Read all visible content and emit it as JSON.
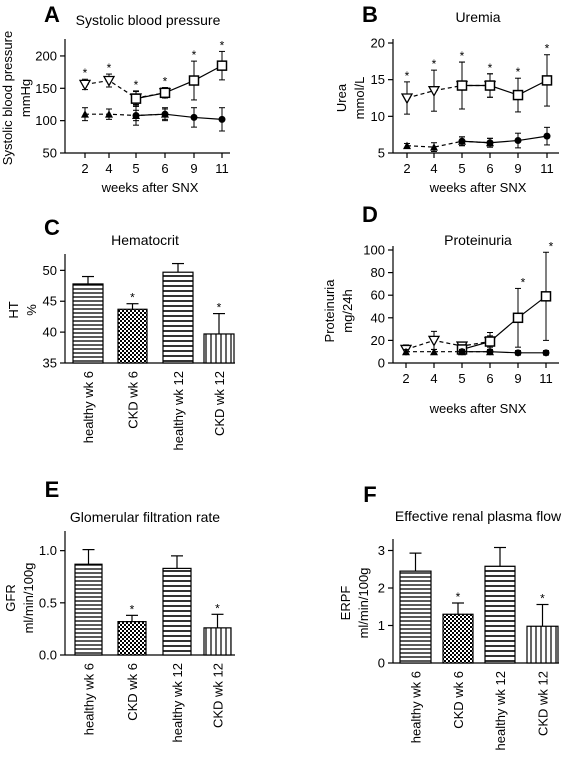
{
  "chart_data": [
    {
      "panel": "A",
      "type": "line",
      "title": "Systolic blood pressure",
      "ylabel": [
        "Systolic blood pressure",
        "mmHg"
      ],
      "xlabel": "weeks after SNX",
      "categories": [
        "2",
        "4",
        "5",
        "6",
        "9",
        "11"
      ],
      "ylim": [
        50,
        220
      ],
      "yticks": [
        "50",
        "100",
        "150",
        "200"
      ],
      "series": [
        {
          "marker": "triangle-down-open",
          "line": "dashed",
          "values": [
            156,
            162,
            135,
            143,
            null,
            null
          ],
          "errors": [
            8,
            10,
            10,
            8,
            null,
            null
          ]
        },
        {
          "marker": "square-open",
          "line": "solid",
          "values": [
            null,
            null,
            134,
            143,
            162,
            185
          ],
          "errors": [
            null,
            null,
            12,
            8,
            30,
            22
          ]
        },
        {
          "marker": "triangle-up-filled",
          "line": "dashed",
          "values": [
            110,
            110,
            108,
            110,
            null,
            null
          ],
          "errors": [
            10,
            8,
            8,
            8,
            null,
            null
          ]
        },
        {
          "marker": "circle-filled",
          "line": "solid",
          "values": [
            null,
            null,
            108,
            110,
            105,
            102
          ],
          "errors": [
            null,
            null,
            15,
            10,
            15,
            18
          ]
        }
      ],
      "significance": [
        "*",
        "*",
        "*",
        "*",
        "*",
        "*"
      ]
    },
    {
      "panel": "B",
      "type": "line",
      "title": "Uremia",
      "ylabel": [
        "Urea",
        "mmol/L"
      ],
      "xlabel": "weeks after SNX",
      "categories": [
        "2",
        "4",
        "5",
        "6",
        "9",
        "11"
      ],
      "ylim": [
        5,
        20
      ],
      "yticks": [
        "5",
        "10",
        "15",
        "20"
      ],
      "series": [
        {
          "marker": "triangle-down-open",
          "line": "dashed",
          "values": [
            12.5,
            13.5,
            14.2,
            14.2,
            null,
            null
          ],
          "errors": [
            2.2,
            2.8,
            3.2,
            1.6,
            null,
            null
          ]
        },
        {
          "marker": "square-open",
          "line": "solid",
          "values": [
            null,
            null,
            14.2,
            14.2,
            12.9,
            14.9
          ],
          "errors": [
            null,
            null,
            3.2,
            1.6,
            2.3,
            3.5
          ]
        },
        {
          "marker": "triangle-up-filled",
          "line": "dashed",
          "values": [
            6.0,
            5.8,
            6.6,
            6.4,
            null,
            null
          ],
          "errors": [
            0.3,
            0.6,
            0.6,
            0.6,
            null,
            null
          ]
        },
        {
          "marker": "circle-filled",
          "line": "solid",
          "values": [
            null,
            null,
            6.6,
            6.4,
            6.7,
            7.3
          ],
          "errors": [
            null,
            null,
            0.6,
            0.6,
            1.0,
            1.2
          ]
        }
      ],
      "significance": [
        "*",
        "*",
        "*",
        "*",
        "*",
        "*"
      ]
    },
    {
      "panel": "C",
      "type": "bar",
      "title": "Hematocrit",
      "ylabel": [
        "HT",
        "%"
      ],
      "categories": [
        "healthy wk 6",
        "CKD wk 6",
        "healthy wk 12",
        "CKD wk 12"
      ],
      "values": [
        47.8,
        43.7,
        49.7,
        39.7
      ],
      "errors": [
        1.2,
        0.9,
        1.4,
        3.3
      ],
      "significance": [
        "",
        "*",
        "",
        "*"
      ],
      "ylim": [
        35,
        52
      ],
      "yticks": [
        "35",
        "40",
        "45",
        "50"
      ]
    },
    {
      "panel": "D",
      "type": "line",
      "title": "Proteinuria",
      "ylabel": [
        "Proteinuria",
        "mg/24h"
      ],
      "xlabel": "weeks after SNX",
      "categories": [
        "2",
        "4",
        "5",
        "6",
        "9",
        "11"
      ],
      "ylim": [
        0,
        100
      ],
      "yticks": [
        "0",
        "20",
        "40",
        "60",
        "80",
        "100"
      ],
      "series": [
        {
          "marker": "triangle-down-open",
          "line": "dashed",
          "values": [
            12,
            20,
            15,
            19,
            null,
            null
          ],
          "errors": [
            4,
            8,
            3,
            5,
            null,
            null
          ]
        },
        {
          "marker": "square-open",
          "line": "solid",
          "values": [
            null,
            null,
            12,
            19,
            40,
            59
          ],
          "errors": [
            null,
            null,
            3,
            8,
            26,
            39
          ]
        },
        {
          "marker": "triangle-up-filled",
          "line": "dashed",
          "values": [
            10,
            10,
            10,
            10,
            null,
            null
          ],
          "errors": [
            2,
            2,
            2,
            2,
            null,
            null
          ]
        },
        {
          "marker": "circle-filled",
          "line": "solid",
          "values": [
            null,
            null,
            10,
            10,
            9,
            9
          ],
          "errors": [
            null,
            null,
            2,
            2,
            2,
            2
          ]
        }
      ],
      "significance": [
        "",
        "",
        "",
        "",
        "*",
        "*"
      ]
    },
    {
      "panel": "E",
      "type": "bar",
      "title": "Glomerular filtration rate",
      "ylabel": [
        "GFR",
        "ml/min/100g"
      ],
      "categories": [
        "healthy wk 6",
        "CKD wk 6",
        "healthy wk 12",
        "CKD wk 12"
      ],
      "values": [
        0.87,
        0.32,
        0.83,
        0.26
      ],
      "errors": [
        0.14,
        0.06,
        0.12,
        0.13
      ],
      "significance": [
        "",
        "*",
        "",
        "*"
      ],
      "ylim": [
        0,
        1.15
      ],
      "yticks": [
        "0.0",
        "0.5",
        "1.0"
      ]
    },
    {
      "panel": "F",
      "type": "bar",
      "title": "Effective renal plasma flow",
      "ylabel": [
        "ERPF",
        "ml/min/100g"
      ],
      "categories": [
        "healthy wk 6",
        "CKD wk 6",
        "healthy wk 12",
        "CKD wk 12"
      ],
      "values": [
        2.45,
        1.3,
        2.58,
        0.98
      ],
      "errors": [
        0.48,
        0.3,
        0.5,
        0.58
      ],
      "significance": [
        "",
        "*",
        "",
        "*"
      ],
      "ylim": [
        0,
        3.2
      ],
      "yticks": [
        "0",
        "1",
        "2",
        "3"
      ]
    }
  ]
}
